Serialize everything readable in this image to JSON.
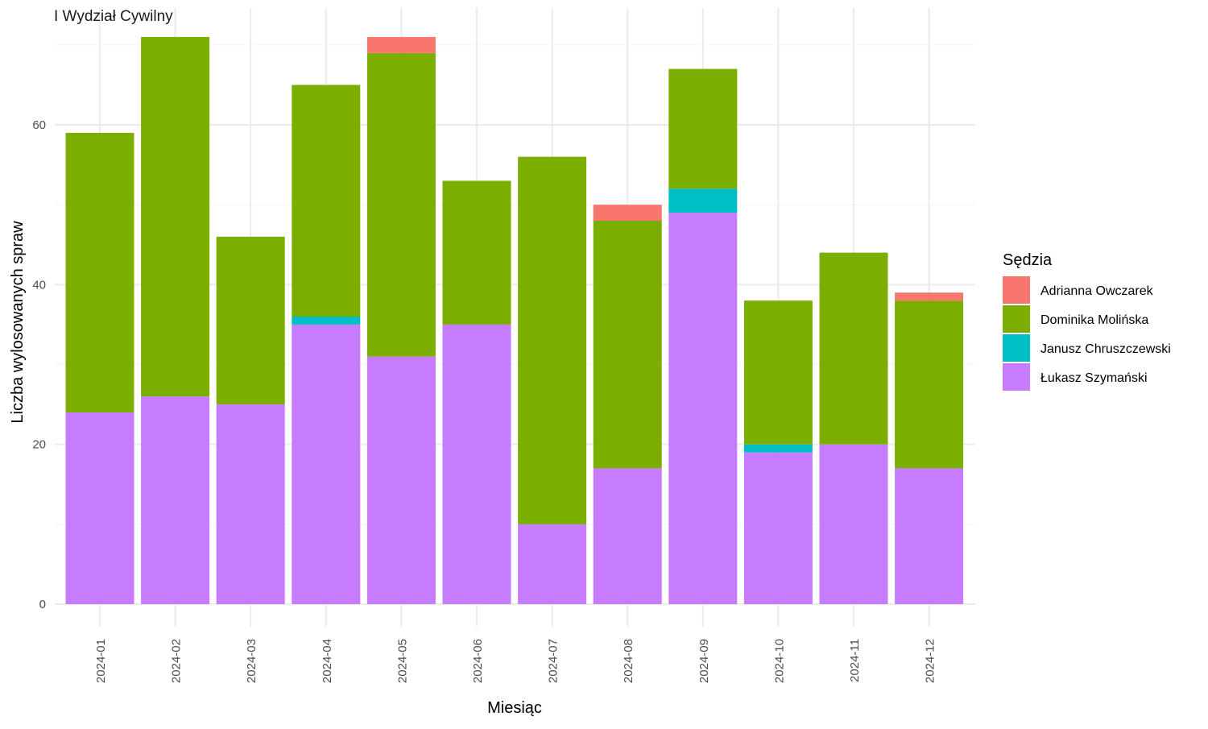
{
  "chart_data": {
    "type": "bar",
    "stacked": true,
    "facet_title": "I Wydział Cywilny",
    "xlabel": "Miesiąc",
    "ylabel": "Liczba wylosowanych spraw",
    "ylim": [
      0,
      72
    ],
    "y_ticks": [
      0,
      20,
      40,
      60
    ],
    "grid": true,
    "legend_title": "Sędzia",
    "legend_position": "right",
    "categories": [
      "2024-01",
      "2024-02",
      "2024-03",
      "2024-04",
      "2024-05",
      "2024-06",
      "2024-07",
      "2024-08",
      "2024-09",
      "2024-10",
      "2024-11",
      "2024-12"
    ],
    "series": [
      {
        "name": "Łukasz Szymański",
        "color": "#C77CFF",
        "values": [
          24,
          26,
          25,
          35,
          31,
          35,
          10,
          17,
          49,
          19,
          20,
          17
        ]
      },
      {
        "name": "Janusz Chruszczewski",
        "color": "#00BFC4",
        "values": [
          0,
          0,
          0,
          1,
          0,
          0,
          0,
          0,
          3,
          1,
          0,
          0
        ]
      },
      {
        "name": "Dominika Molińska",
        "color": "#7CAE00",
        "values": [
          35,
          45,
          21,
          29,
          38,
          18,
          46,
          31,
          15,
          18,
          24,
          21
        ]
      },
      {
        "name": "Adrianna Owczarek",
        "color": "#F8766D",
        "values": [
          0,
          0,
          0,
          0,
          2,
          0,
          0,
          2,
          0,
          0,
          0,
          1
        ]
      }
    ],
    "legend_order": [
      "Adrianna Owczarek",
      "Dominika Molińska",
      "Janusz Chruszczewski",
      "Łukasz Szymański"
    ]
  }
}
